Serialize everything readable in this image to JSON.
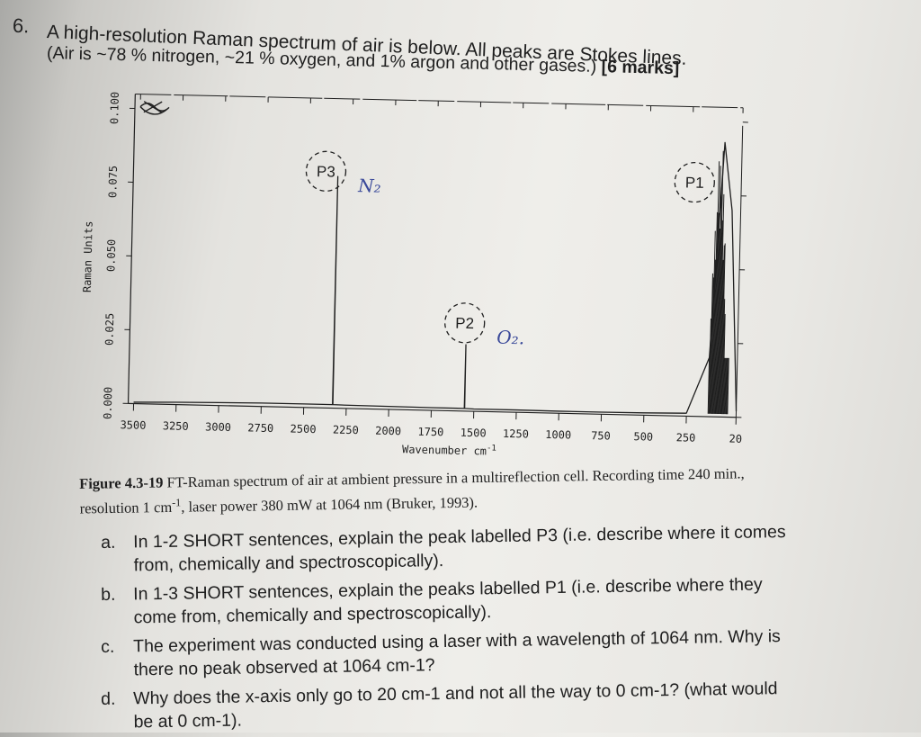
{
  "question": {
    "number": "6.",
    "line1": "A high-resolution Raman spectrum of air is below. All peaks are Stokes lines.",
    "line2": "(Air is ~78 % nitrogen, ~21 % oxygen, and 1% argon and other gases.) ",
    "marks": "[6 marks]"
  },
  "chart_data": {
    "type": "line",
    "title": "",
    "xlabel": "Wavenumber cm-1",
    "xlabel_text": "Wavenumber  cm",
    "xlabel_sup": "-1",
    "ylabel": "Raman Units",
    "x_ticks": [
      "3500",
      "3250",
      "3000",
      "2750",
      "2500",
      "2250",
      "2000",
      "1750",
      "1500",
      "1250",
      "1000",
      "750",
      "500",
      "250",
      "20"
    ],
    "y_ticks": [
      "0.000",
      "0.025",
      "0.050",
      "0.075",
      "0.100"
    ],
    "xlim": [
      3500,
      20
    ],
    "ylim": [
      0,
      0.1
    ],
    "x_reversed": true,
    "grid": false,
    "series": [
      {
        "x": [
          3500,
          3250,
          3000,
          2750,
          2500,
          2331,
          2330,
          2329,
          2250,
          2000,
          1750,
          1556,
          1555,
          1554,
          1500,
          1250,
          1000,
          750,
          500,
          250,
          150,
          100,
          60,
          20
        ],
        "y": [
          0.0005,
          0.0008,
          0.001,
          0.0012,
          0.0012,
          0.0012,
          0.0785,
          0.0012,
          0.0011,
          0.001,
          0.0009,
          0.0009,
          0.0225,
          0.0009,
          0.0008,
          0.0008,
          0.0007,
          0.0007,
          0.0008,
          0.001,
          0.02,
          0.093,
          0.07,
          0.002
        ]
      }
    ],
    "annotations": [
      {
        "label": "P3",
        "note": "N₂",
        "x": 2330
      },
      {
        "label": "P2",
        "note": "O₂.",
        "x": 1555
      },
      {
        "label": "P1",
        "note": "",
        "x": 100
      }
    ]
  },
  "caption": {
    "fig_label": "Figure 4.3-19",
    "text": " FT-Raman spectrum of air at ambient pressure in a multireflection cell. Recording time 240 min., resolution 1 cm",
    "sup": "-1",
    "text2": ", laser power 380 mW at 1064 nm (Bruker, 1993)."
  },
  "subquestions": [
    {
      "letter": "a.",
      "text": "In 1-2 SHORT sentences, explain the peak labelled P3 (i.e. describe where it comes from, chemically and spectroscopically)."
    },
    {
      "letter": "b.",
      "text": "In 1-3 SHORT sentences, explain the peaks labelled P1 (i.e. describe where they come from, chemically and spectroscopically)."
    },
    {
      "letter": "c.",
      "text": "The experiment was conducted using a laser with a wavelength of 1064 nm. Why is there no peak observed at 1064 cm-1?"
    },
    {
      "letter": "d.",
      "text": "Why does the x-axis only go to 20 cm-1 and not all the way to 0 cm-1? (what would be at 0 cm-1)."
    }
  ],
  "colors": {
    "ink": "#1f1f1f",
    "pen": "#3b4a9a",
    "paper": "#ecebe7"
  }
}
